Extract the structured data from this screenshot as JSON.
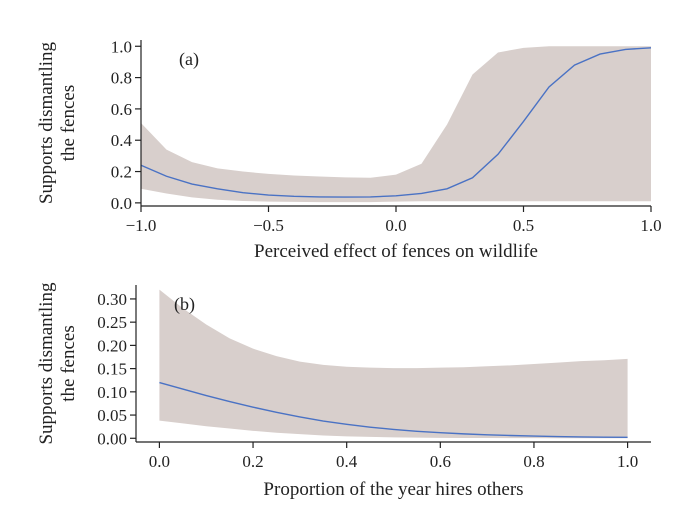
{
  "colors": {
    "band": "#d8cfcc",
    "line": "#4a72c4",
    "axis": "#222222"
  },
  "chart_data": [
    {
      "type": "line",
      "panel_label": "(a)",
      "xlabel": "Perceived effect of fences on wildlife",
      "ylabel_lines": [
        "Supports dismantling",
        "the fences"
      ],
      "xlim": [
        -1.0,
        1.0
      ],
      "ylim": [
        -0.02,
        1.04
      ],
      "xticks": [
        -1.0,
        -0.5,
        0.0,
        0.5,
        1.0
      ],
      "xtick_labels": [
        "−1.0",
        "−0.5",
        "0.0",
        "0.5",
        "1.0"
      ],
      "yticks": [
        0.0,
        0.2,
        0.4,
        0.6,
        0.8,
        1.0
      ],
      "ytick_labels": [
        "0.0",
        "0.2",
        "0.4",
        "0.6",
        "0.8",
        "1.0"
      ],
      "grid": false,
      "legend": "none",
      "x": [
        -1.0,
        -0.9,
        -0.8,
        -0.7,
        -0.6,
        -0.5,
        -0.4,
        -0.3,
        -0.2,
        -0.1,
        0.0,
        0.1,
        0.2,
        0.3,
        0.4,
        0.5,
        0.6,
        0.7,
        0.8,
        0.9,
        1.0
      ],
      "y": [
        0.24,
        0.17,
        0.12,
        0.09,
        0.065,
        0.05,
        0.042,
        0.038,
        0.037,
        0.038,
        0.045,
        0.06,
        0.09,
        0.16,
        0.31,
        0.52,
        0.74,
        0.88,
        0.95,
        0.98,
        0.99
      ],
      "ci_upper": [
        0.51,
        0.34,
        0.26,
        0.22,
        0.2,
        0.185,
        0.175,
        0.168,
        0.163,
        0.16,
        0.18,
        0.25,
        0.5,
        0.82,
        0.96,
        0.99,
        1.0,
        1.0,
        1.0,
        1.0,
        1.0
      ],
      "ci_lower": [
        0.09,
        0.06,
        0.035,
        0.02,
        0.012,
        0.008,
        0.006,
        0.005,
        0.005,
        0.005,
        0.008,
        0.01,
        0.01,
        0.01,
        0.01,
        0.01,
        0.01,
        0.01,
        0.01,
        0.01,
        0.01
      ]
    },
    {
      "type": "line",
      "panel_label": "(b)",
      "xlabel": "Proportion of the year hires others",
      "ylabel_lines": [
        "Supports dismantling",
        "the fences"
      ],
      "xlim": [
        -0.05,
        1.05
      ],
      "ylim": [
        -0.008,
        0.33
      ],
      "xticks": [
        0.0,
        0.2,
        0.4,
        0.6,
        0.8,
        1.0
      ],
      "xtick_labels": [
        "0.0",
        "0.2",
        "0.4",
        "0.6",
        "0.8",
        "1.0"
      ],
      "yticks": [
        0.0,
        0.05,
        0.1,
        0.15,
        0.2,
        0.25,
        0.3
      ],
      "ytick_labels": [
        "0.00",
        "0.05",
        "0.10",
        "0.15",
        "0.20",
        "0.25",
        "0.30"
      ],
      "grid": false,
      "legend": "none",
      "x": [
        0.0,
        0.05,
        0.1,
        0.15,
        0.2,
        0.25,
        0.3,
        0.35,
        0.4,
        0.45,
        0.5,
        0.55,
        0.6,
        0.65,
        0.7,
        0.75,
        0.8,
        0.85,
        0.9,
        0.95,
        1.0
      ],
      "y": [
        0.12,
        0.106,
        0.092,
        0.079,
        0.067,
        0.056,
        0.046,
        0.037,
        0.03,
        0.024,
        0.019,
        0.015,
        0.012,
        0.0095,
        0.0075,
        0.006,
        0.0048,
        0.0038,
        0.003,
        0.0024,
        0.002
      ],
      "ci_upper": [
        0.32,
        0.28,
        0.245,
        0.215,
        0.193,
        0.177,
        0.165,
        0.158,
        0.154,
        0.152,
        0.151,
        0.151,
        0.152,
        0.153,
        0.155,
        0.157,
        0.16,
        0.163,
        0.166,
        0.168,
        0.171
      ],
      "ci_lower": [
        0.038,
        0.032,
        0.026,
        0.021,
        0.016,
        0.012,
        0.009,
        0.006,
        0.004,
        0.003,
        0.002,
        0.0014,
        0.001,
        0.0007,
        0.0005,
        0.0004,
        0.0003,
        0.0002,
        0.0001,
        0.0001,
        0.0
      ]
    }
  ]
}
